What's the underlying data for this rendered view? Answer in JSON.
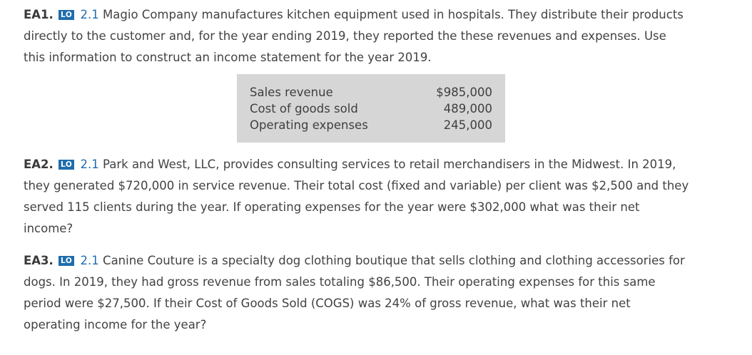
{
  "ea1": {
    "id": "EA1.",
    "lo_badge": "LO",
    "lo_ref": "2.1",
    "line1": "Magio Company manufactures kitchen equipment used in hospitals. They distribute their products",
    "line2": "directly to the customer and, for the year ending 2019, they reported the these revenues and expenses. Use",
    "line3": "this information to construct an income statement for the year 2019.",
    "table": [
      {
        "label": "Sales revenue",
        "value": "$985,000"
      },
      {
        "label": "Cost of goods sold",
        "value": "489,000"
      },
      {
        "label": "Operating expenses",
        "value": "245,000"
      }
    ]
  },
  "ea2": {
    "id": "EA2.",
    "lo_badge": "LO",
    "lo_ref": "2.1",
    "line1": "Park and West, LLC, provides consulting services to retail merchandisers in the Midwest. In 2019,",
    "line2": "they generated $720,000 in service revenue. Their total cost (fixed and variable) per client was $2,500 and they",
    "line3": "served 115 clients during the year. If operating expenses for the year were $302,000 what was their net",
    "line4": "income?"
  },
  "ea3": {
    "id": "EA3.",
    "lo_badge": "LO",
    "lo_ref": "2.1",
    "line1": "Canine Couture is a specialty dog clothing boutique that sells clothing and clothing accessories for",
    "line2": "dogs. In 2019, they had gross revenue from sales totaling $86,500. Their operating expenses for this same",
    "line3": "period were $27,500. If their Cost of Goods Sold (COGS) was 24% of gross revenue, what was their net",
    "line4": "operating income for the year?"
  }
}
